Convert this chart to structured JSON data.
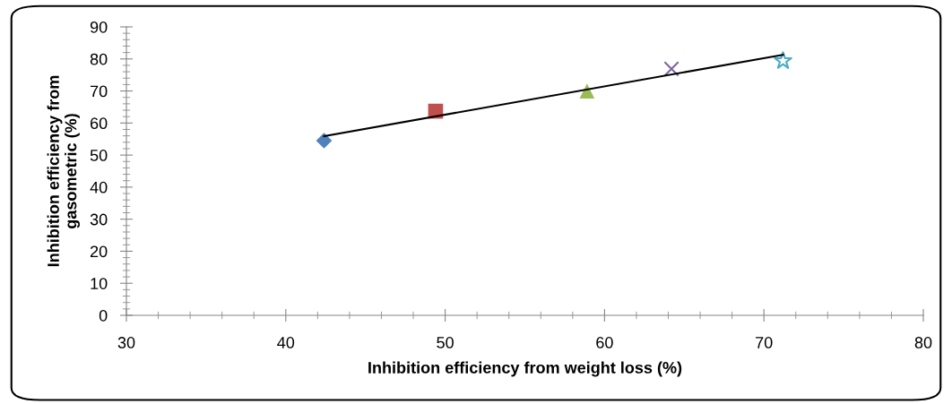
{
  "chart_data": {
    "type": "scatter",
    "xlabel": "Inhibition efficiency from weight loss (%)",
    "ylabel": "Inhibition efficiency from\ngasometric (%)",
    "xlim": [
      30,
      80
    ],
    "xticks": [
      30,
      40,
      50,
      60,
      70,
      80
    ],
    "ylim": [
      0,
      90
    ],
    "yticks": [
      0,
      10,
      20,
      30,
      40,
      50,
      60,
      70,
      80,
      90
    ],
    "grid": false,
    "series": [
      {
        "x": [
          42.4
        ],
        "values": [
          54.5
        ],
        "color": "#4f81bd",
        "marker": "diamond"
      },
      {
        "x": [
          49.4
        ],
        "values": [
          63.7
        ],
        "color": "#c0504d",
        "marker": "square"
      },
      {
        "x": [
          58.9
        ],
        "values": [
          70.0
        ],
        "color": "#9bbb59",
        "marker": "triangle"
      },
      {
        "x": [
          64.2
        ],
        "values": [
          76.9
        ],
        "color": "#8064a2",
        "marker": "cross"
      },
      {
        "x": [
          71.2
        ],
        "values": [
          79.4
        ],
        "color": "#4bacc6",
        "marker": "star"
      },
      {
        "type": "line",
        "x": [
          42.4,
          71.2
        ],
        "values": [
          55.9,
          81.3
        ],
        "color": "#000000",
        "marker": "none",
        "line_style": "solid"
      }
    ]
  }
}
